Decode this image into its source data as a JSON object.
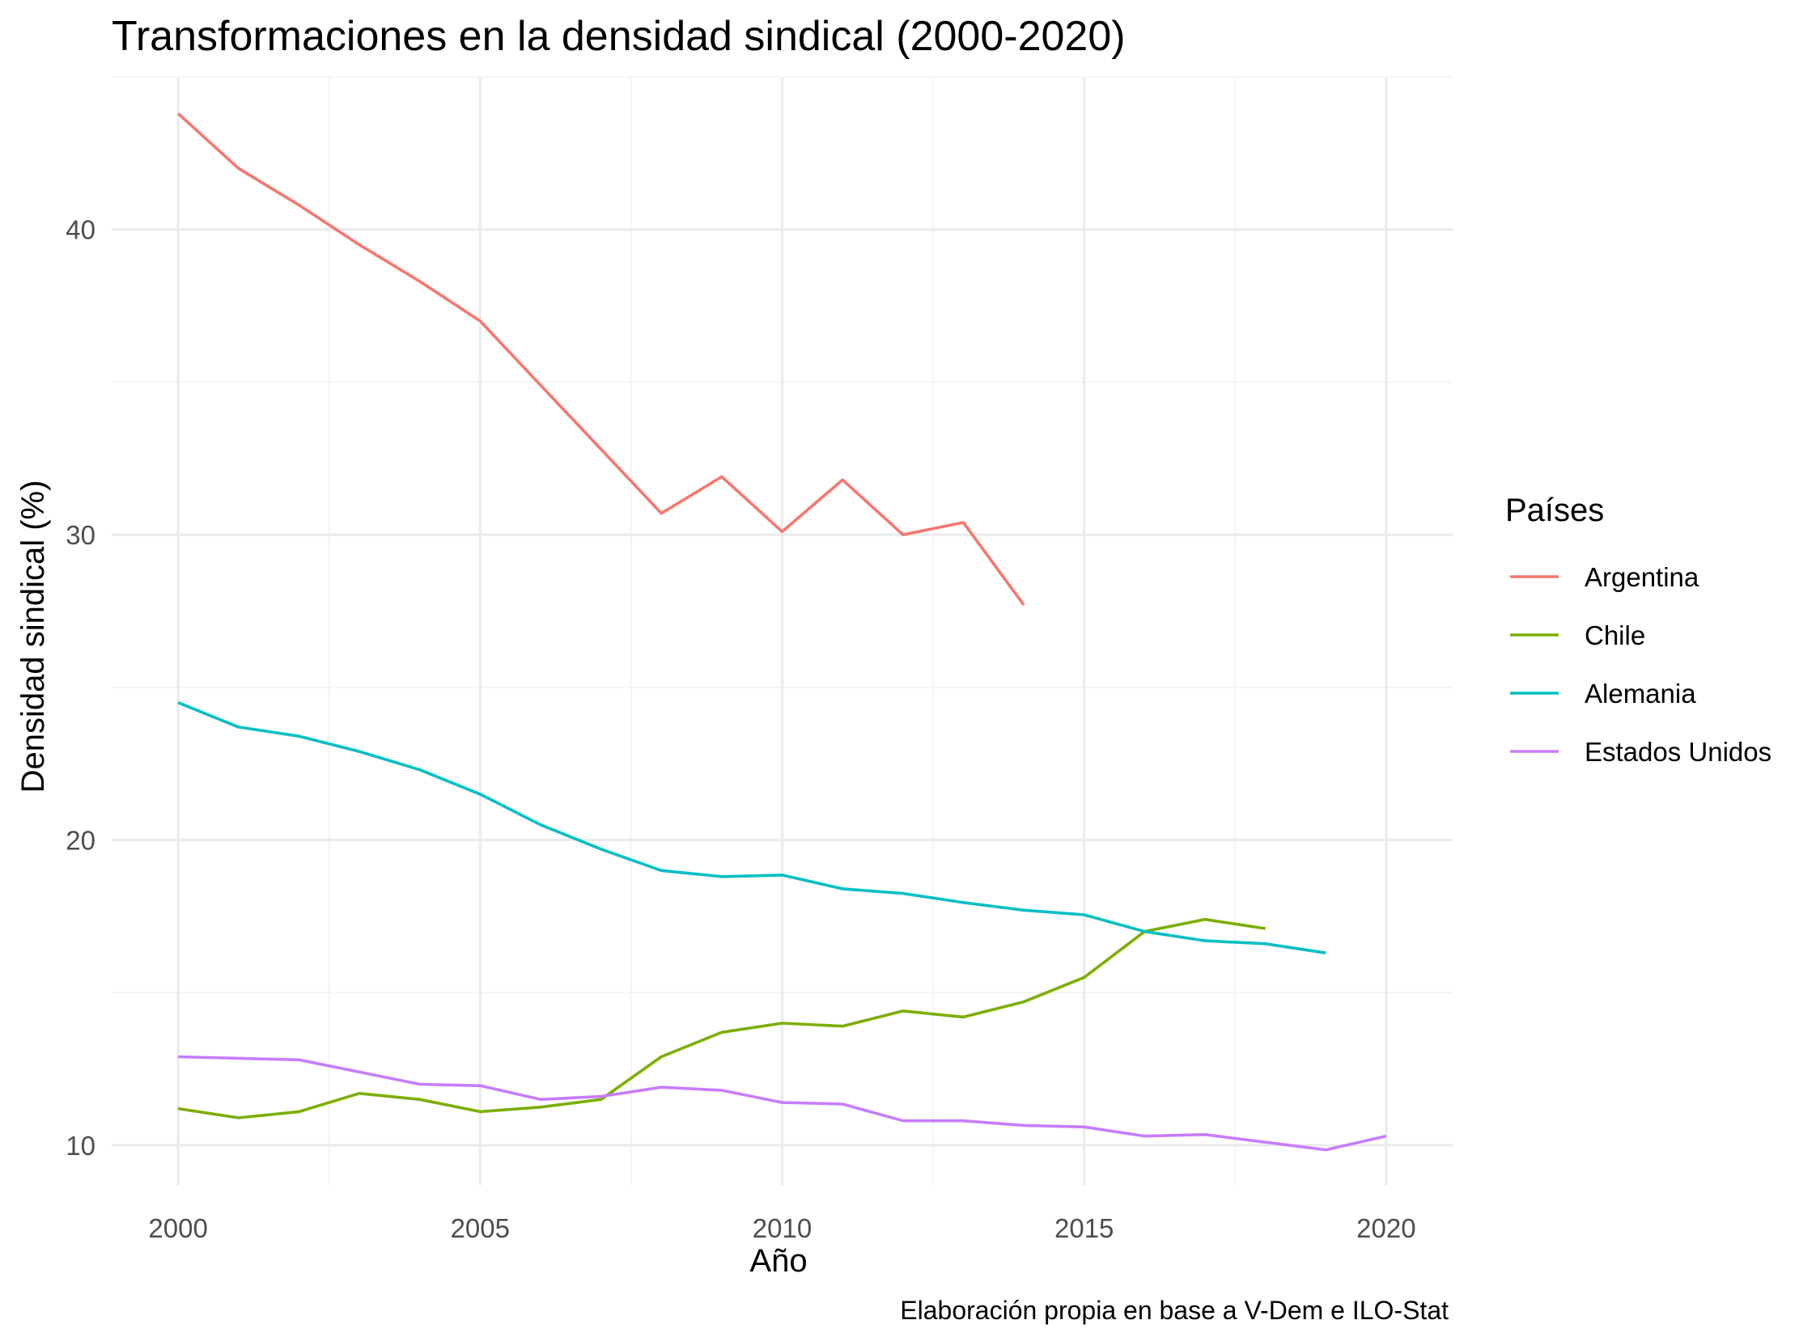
{
  "chart_data": {
    "type": "line",
    "title": "Transformaciones en la densidad sindical (2000-2020)",
    "xlabel": "Año",
    "ylabel": "Densidad sindical (%)",
    "caption": "Elaboración propia en base a V-Dem e ILO-Stat",
    "xlim": [
      1998.9,
      2021.1
    ],
    "ylim": [
      8.7,
      45.0
    ],
    "x_ticks": [
      2000,
      2005,
      2010,
      2015,
      2020
    ],
    "y_ticks": [
      10,
      20,
      30,
      40
    ],
    "grid": true,
    "legend": {
      "title": "Países",
      "position": "right"
    },
    "series": [
      {
        "name": "Argentina",
        "color": "#F8766D",
        "x": [
          2000,
          2001,
          2002,
          2003,
          2004,
          2005,
          2006,
          2007,
          2008,
          2009,
          2010,
          2011,
          2012,
          2013,
          2014
        ],
        "y": [
          43.8,
          42.0,
          40.8,
          39.5,
          38.3,
          37.0,
          34.9,
          32.8,
          30.7,
          31.9,
          30.1,
          31.8,
          30.0,
          30.4,
          27.7
        ]
      },
      {
        "name": "Chile",
        "color": "#7CAE00",
        "x": [
          2000,
          2001,
          2002,
          2003,
          2004,
          2005,
          2006,
          2007,
          2008,
          2009,
          2010,
          2011,
          2012,
          2013,
          2014,
          2015,
          2016,
          2017,
          2018
        ],
        "y": [
          11.2,
          10.9,
          11.1,
          11.7,
          11.5,
          11.1,
          11.25,
          11.5,
          12.9,
          13.7,
          14.0,
          13.9,
          14.4,
          14.2,
          14.7,
          15.5,
          17.0,
          17.4,
          17.1
        ]
      },
      {
        "name": "Alemania",
        "color": "#00BFC4",
        "x": [
          2000,
          2001,
          2002,
          2003,
          2004,
          2005,
          2006,
          2007,
          2008,
          2009,
          2010,
          2011,
          2012,
          2013,
          2014,
          2015,
          2016,
          2017,
          2018,
          2019
        ],
        "y": [
          24.5,
          23.7,
          23.4,
          22.9,
          22.3,
          21.5,
          20.5,
          19.7,
          19.0,
          18.8,
          18.85,
          18.4,
          18.25,
          17.95,
          17.7,
          17.55,
          17.0,
          16.7,
          16.6,
          16.3
        ]
      },
      {
        "name": "Estados Unidos",
        "color": "#C77CFF",
        "x": [
          2000,
          2001,
          2002,
          2003,
          2004,
          2005,
          2006,
          2007,
          2008,
          2009,
          2010,
          2011,
          2012,
          2013,
          2014,
          2015,
          2016,
          2017,
          2018,
          2019,
          2020
        ],
        "y": [
          12.9,
          12.85,
          12.8,
          12.4,
          12.0,
          11.95,
          11.5,
          11.6,
          11.9,
          11.8,
          11.4,
          11.35,
          10.8,
          10.8,
          10.65,
          10.6,
          10.3,
          10.35,
          10.1,
          9.85,
          10.3
        ]
      }
    ]
  }
}
